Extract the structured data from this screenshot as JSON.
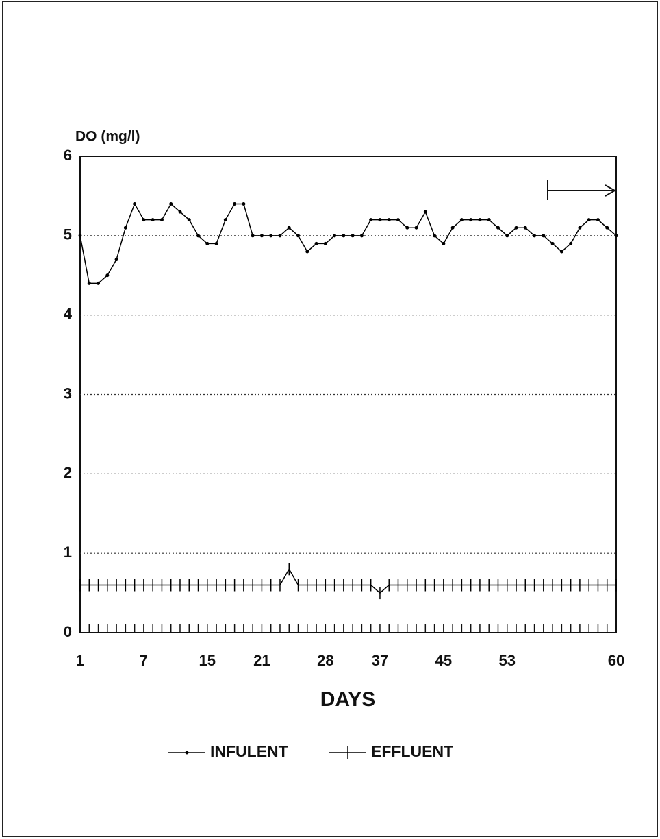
{
  "chart_data": {
    "type": "line",
    "y_label": "DO (mg/l)",
    "x_label": "DAYS",
    "categories": [
      "1",
      null,
      null,
      null,
      null,
      null,
      null,
      "7",
      null,
      null,
      null,
      null,
      null,
      null,
      "15",
      null,
      null,
      null,
      null,
      null,
      "21",
      null,
      null,
      null,
      null,
      null,
      null,
      "28",
      null,
      null,
      null,
      null,
      null,
      "37",
      null,
      null,
      null,
      null,
      null,
      null,
      "45",
      null,
      null,
      null,
      null,
      null,
      null,
      "53",
      null,
      null,
      null,
      null,
      null,
      null,
      null,
      null,
      null,
      null,
      null,
      "60"
    ],
    "series": [
      {
        "name": "INFULENT",
        "color": "#000000",
        "marker": "dot",
        "values": [
          5.0,
          4.4,
          4.4,
          4.5,
          4.7,
          5.1,
          5.4,
          5.2,
          5.2,
          5.2,
          5.4,
          5.3,
          5.2,
          5.0,
          4.9,
          4.9,
          5.2,
          5.4,
          5.4,
          5.0,
          5.0,
          5.0,
          5.0,
          5.1,
          5.0,
          4.8,
          4.9,
          4.9,
          5.0,
          5.0,
          5.0,
          5.0,
          5.2,
          5.2,
          5.2,
          5.2,
          5.1,
          5.1,
          5.3,
          5.0,
          4.9,
          5.1,
          5.2,
          5.2,
          5.2,
          5.2,
          5.1,
          5.0,
          5.1,
          5.1,
          5.0,
          5.0,
          4.9,
          4.8,
          4.9,
          5.1,
          5.2,
          5.2,
          5.1,
          5.0
        ]
      },
      {
        "name": "EFFLUENT",
        "color": "#000000",
        "marker": "plus",
        "values": [
          0.6,
          0.6,
          0.6,
          0.6,
          0.6,
          0.6,
          0.6,
          0.6,
          0.6,
          0.6,
          0.6,
          0.6,
          0.6,
          0.6,
          0.6,
          0.6,
          0.6,
          0.6,
          0.6,
          0.6,
          0.6,
          0.6,
          0.6,
          0.8,
          0.6,
          0.6,
          0.6,
          0.6,
          0.6,
          0.6,
          0.6,
          0.6,
          0.6,
          0.5,
          0.6,
          0.6,
          0.6,
          0.6,
          0.6,
          0.6,
          0.6,
          0.6,
          0.6,
          0.6,
          0.6,
          0.6,
          0.6,
          0.6,
          0.6,
          0.6,
          0.6,
          0.6,
          0.6,
          0.6,
          0.6,
          0.6,
          0.6,
          0.6,
          0.6,
          0.6
        ]
      }
    ],
    "ylim": [
      0,
      6
    ],
    "yticks": [
      0,
      1,
      2,
      3,
      4,
      5,
      6
    ],
    "grid": true
  }
}
